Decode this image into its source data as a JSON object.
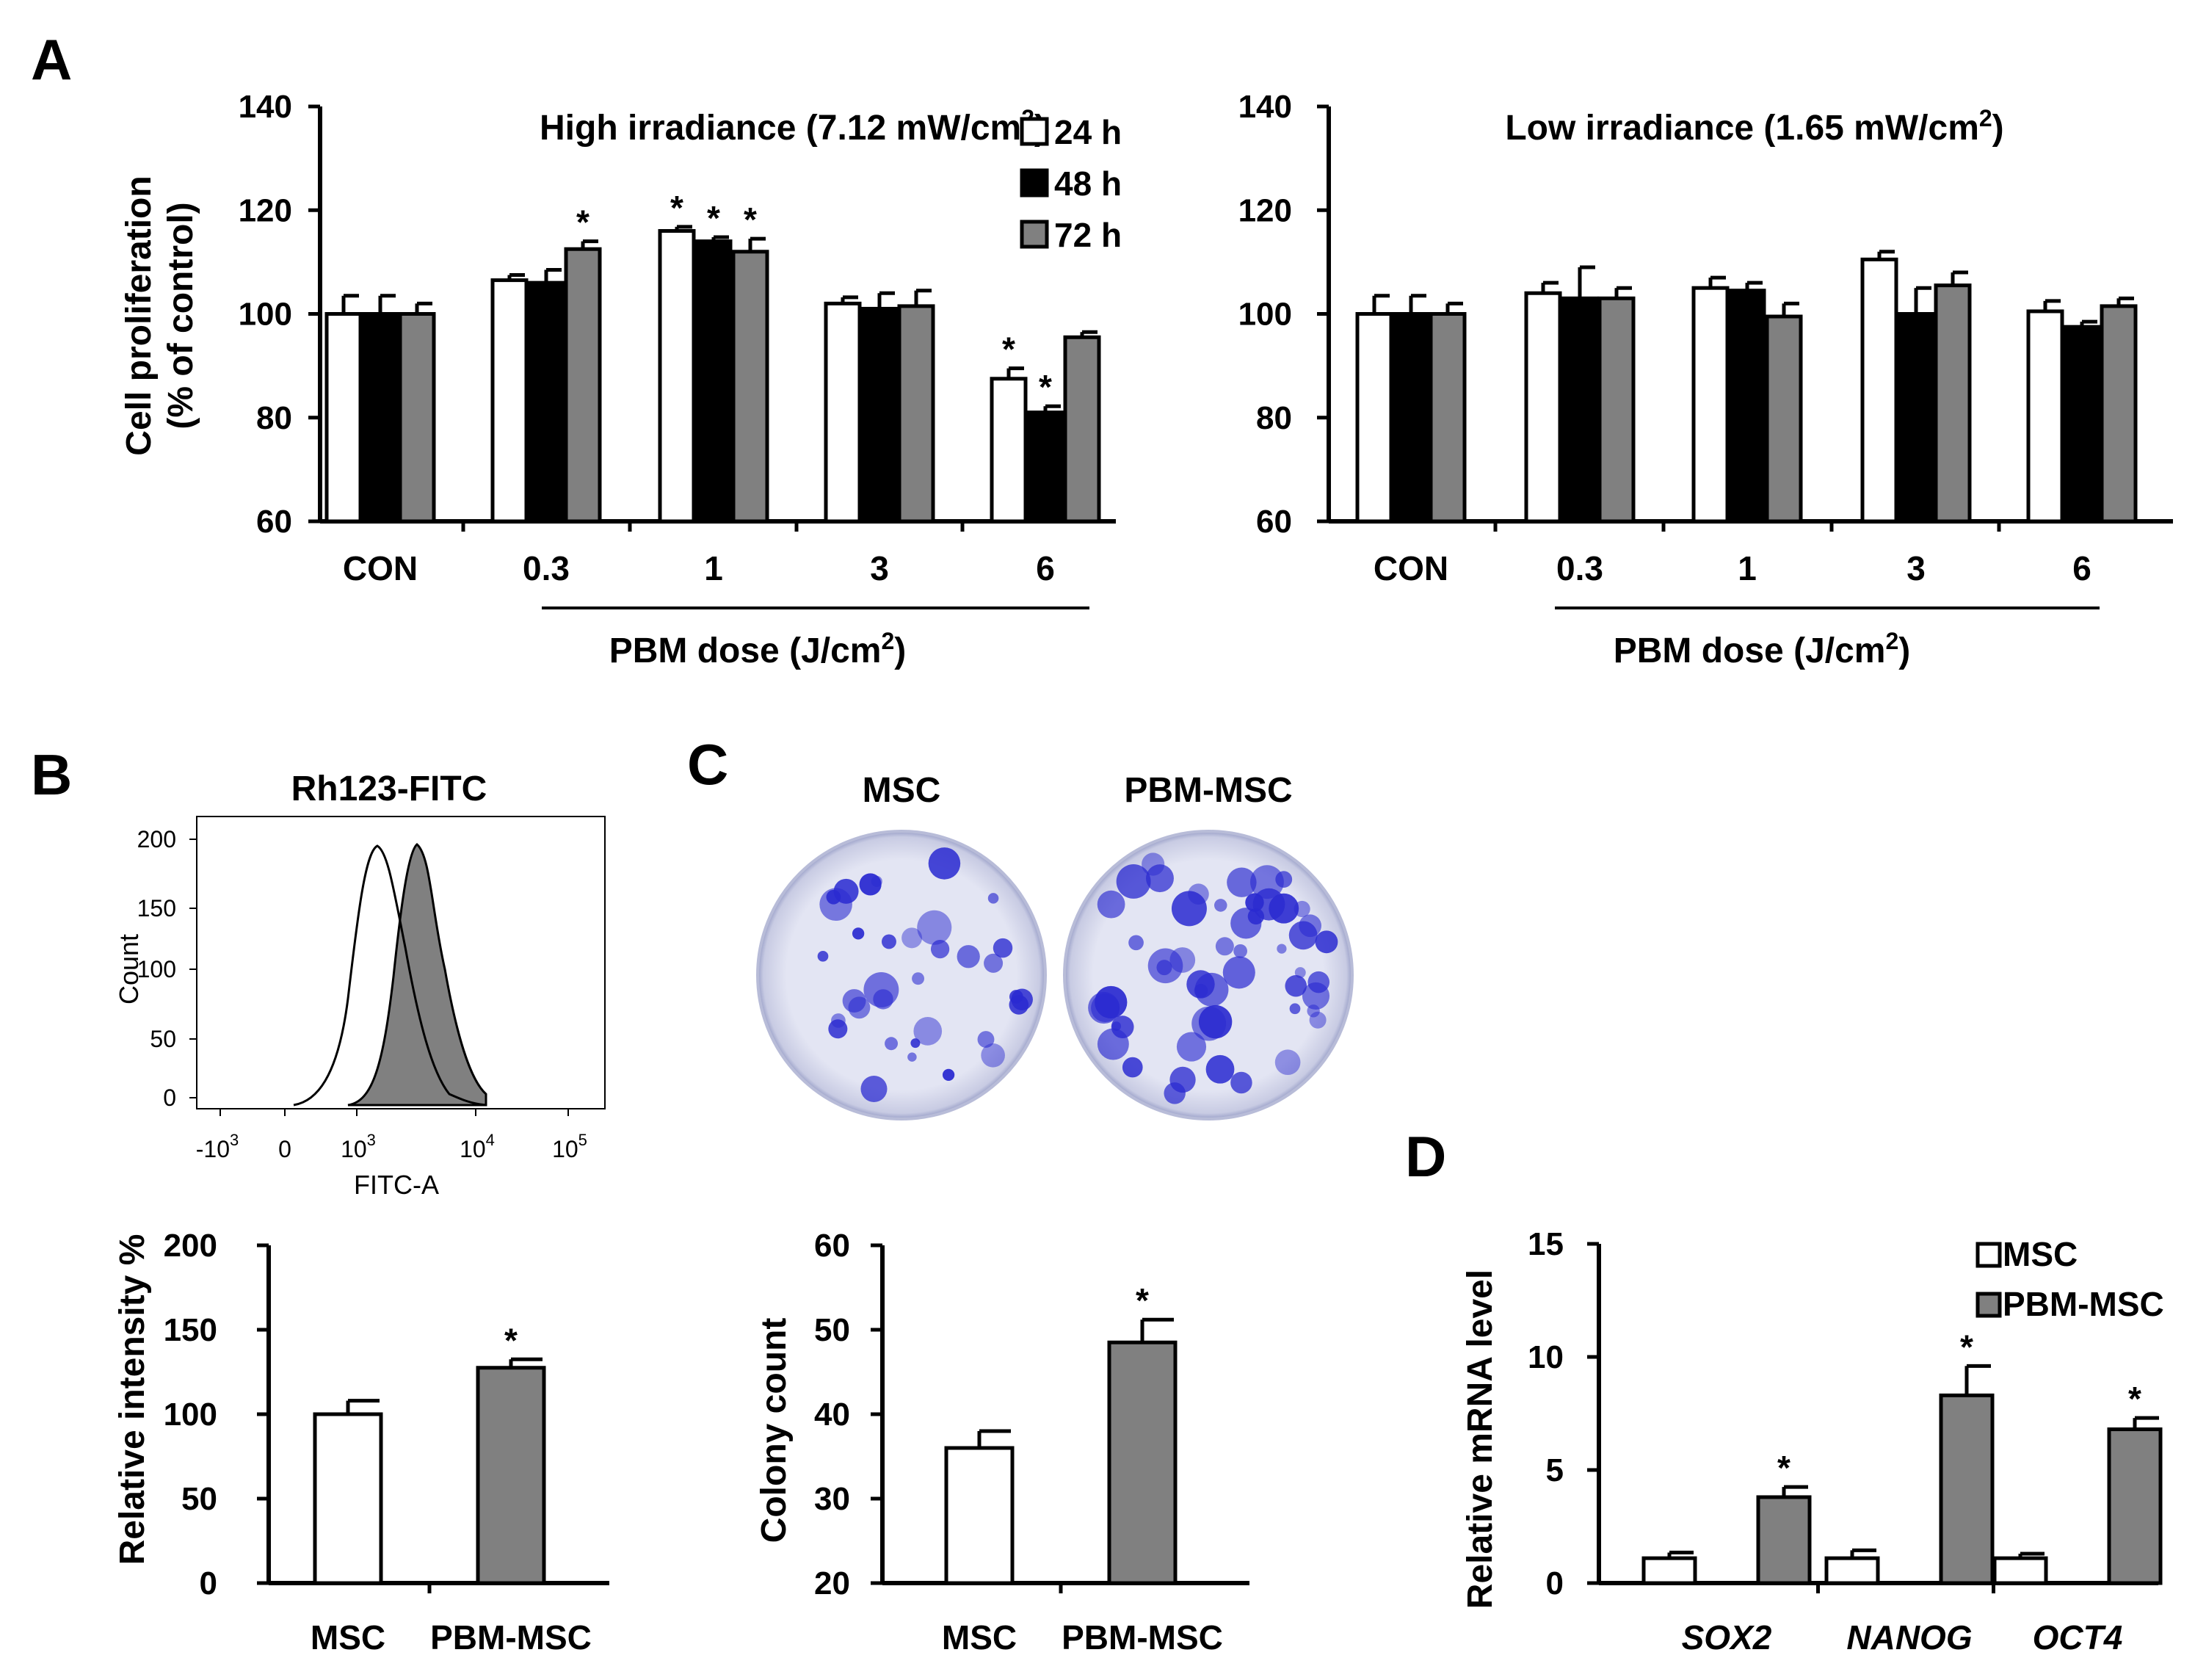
{
  "panels": {
    "a": "A",
    "b": "B",
    "c": "C",
    "d": "D"
  },
  "colors": {
    "h24": "#ffffff",
    "h48": "#000000",
    "h72": "#808080",
    "msc": "#ffffff",
    "pbm": "#808080",
    "line": "#000000",
    "dish_bg": "#dcdff0",
    "colony": "#2a2ad0"
  },
  "chart_data": [
    {
      "id": "a1",
      "type": "bar",
      "title_main": "High irradiance (7.12 mW/cm",
      "title_sup": "2",
      "title_end": ")",
      "ylabel_1": "Cell proliferation",
      "ylabel_2": "(% of control)",
      "xlabel_main": "PBM dose (J/cm",
      "xlabel_sup": "2",
      "xlabel_end": ")",
      "ylim": [
        60,
        140
      ],
      "yticks": [
        "60",
        "80",
        "100",
        "120",
        "140"
      ],
      "categories": [
        "CON",
        "0.3",
        "1",
        "3",
        "6"
      ],
      "series": [
        {
          "name": "24 h",
          "values": [
            100,
            106.5,
            116,
            102,
            87.5
          ],
          "errors": [
            3.5,
            1,
            0.8,
            1.2,
            2
          ],
          "sig": [
            false,
            false,
            true,
            false,
            true
          ]
        },
        {
          "name": "48 h",
          "values": [
            100,
            106,
            114,
            101,
            81
          ],
          "errors": [
            3.5,
            2.5,
            0.8,
            3,
            1.2
          ],
          "sig": [
            false,
            false,
            true,
            false,
            true
          ]
        },
        {
          "name": "72 h",
          "values": [
            100,
            112.5,
            112,
            101.5,
            95.5
          ],
          "errors": [
            2,
            1.5,
            2.5,
            3,
            1
          ],
          "sig": [
            false,
            true,
            true,
            false,
            false
          ]
        }
      ],
      "legend": [
        "24 h",
        "48 h",
        "72 h"
      ]
    },
    {
      "id": "a2",
      "type": "bar",
      "title_main": "Low irradiance (1.65 mW/cm",
      "title_sup": "2",
      "title_end": ")",
      "xlabel_main": "PBM dose (J/cm",
      "xlabel_sup": "2",
      "xlabel_end": ")",
      "ylim": [
        60,
        140
      ],
      "yticks": [
        "60",
        "80",
        "100",
        "120",
        "140"
      ],
      "categories": [
        "CON",
        "0.3",
        "1",
        "3",
        "6"
      ],
      "series": [
        {
          "name": "24 h",
          "values": [
            100,
            104,
            105,
            110.5,
            100.5
          ],
          "errors": [
            3.5,
            2,
            2,
            1.5,
            2
          ],
          "sig": [
            false,
            false,
            false,
            false,
            false
          ]
        },
        {
          "name": "48 h",
          "values": [
            100,
            103,
            104.5,
            100,
            97.5
          ],
          "errors": [
            3.5,
            6,
            1.5,
            5,
            1
          ]
        },
        {
          "name": "72 h",
          "values": [
            100,
            103,
            99.5,
            105.5,
            101.5
          ],
          "errors": [
            2,
            2,
            2.5,
            2.5,
            1.5
          ]
        }
      ]
    },
    {
      "id": "b",
      "type": "bar",
      "ylabel": "Relative intensity %",
      "ylim": [
        0,
        200
      ],
      "yticks": [
        "0",
        "50",
        "100",
        "150",
        "200"
      ],
      "categories": [
        "MSC",
        "PBM-MSC"
      ],
      "values": [
        100,
        127.5
      ],
      "errors": [
        8,
        5
      ],
      "sig": [
        false,
        true
      ]
    },
    {
      "id": "c",
      "type": "bar",
      "ylabel": "Colony count",
      "ylim": [
        20,
        60
      ],
      "yticks": [
        "20",
        "30",
        "40",
        "50",
        "60"
      ],
      "categories": [
        "MSC",
        "PBM-MSC"
      ],
      "values": [
        36,
        48.5
      ],
      "errors": [
        2,
        2.7
      ],
      "sig": [
        false,
        true
      ]
    },
    {
      "id": "d",
      "type": "bar",
      "ylabel": "Relative mRNA level",
      "ylim": [
        0,
        15
      ],
      "yticks": [
        "0",
        "5",
        "10",
        "15"
      ],
      "categories": [
        "SOX2",
        "NANOG",
        "OCT4"
      ],
      "series": [
        {
          "name": "MSC",
          "values": [
            1.1,
            1.1,
            1.1
          ],
          "errors": [
            0.25,
            0.35,
            0.2
          ],
          "sig": [
            false,
            false,
            false
          ]
        },
        {
          "name": "PBM-MSC",
          "values": [
            3.8,
            8.3,
            6.8
          ],
          "errors": [
            0.45,
            1.3,
            0.5
          ],
          "sig": [
            true,
            true,
            true
          ]
        }
      ],
      "legend": [
        "MSC",
        "PBM-MSC"
      ]
    }
  ],
  "flow": {
    "title": "Rh123-FITC",
    "ylabel": "Count",
    "xlabel": "FITC-A",
    "yticks": [
      "0",
      "50",
      "100",
      "150",
      "200"
    ],
    "xticks": [
      {
        "base": "-10",
        "exp": "3"
      },
      {
        "base": "0",
        "exp": ""
      },
      {
        "base": "10",
        "exp": "3"
      },
      {
        "base": "10",
        "exp": "4"
      },
      {
        "base": "10",
        "exp": "5"
      }
    ]
  },
  "colony_images": {
    "labels": [
      "MSC",
      "PBM-MSC"
    ],
    "alt": [
      "MSC colony dish",
      "PBM-MSC colony dish"
    ]
  }
}
